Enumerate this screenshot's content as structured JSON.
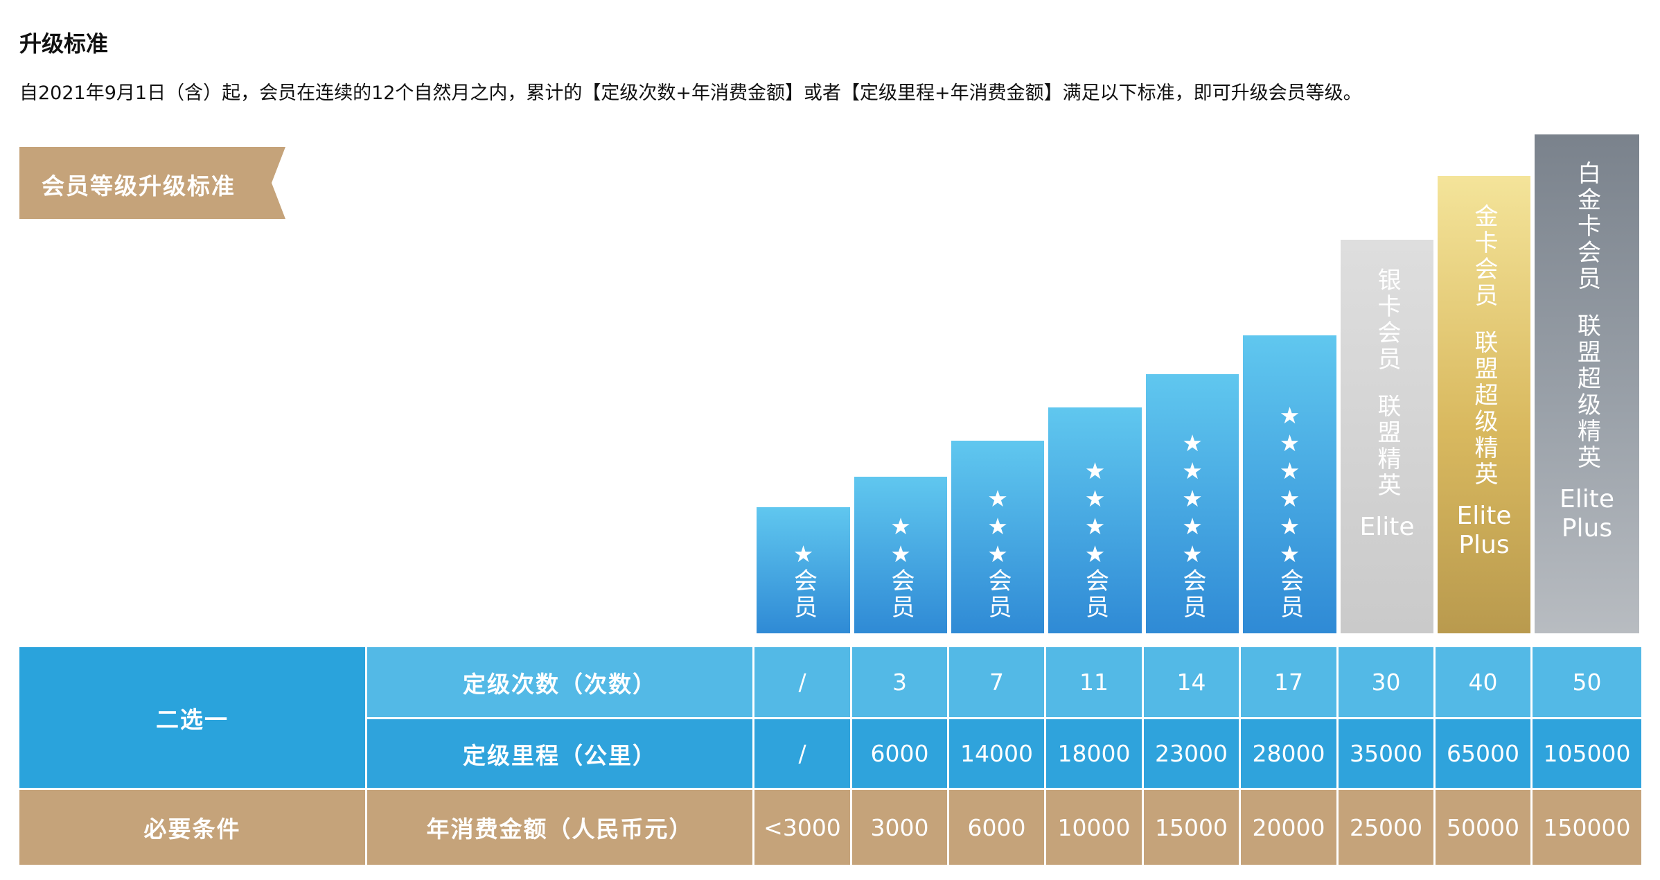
{
  "section_title": "升级标准",
  "description": "自2021年9月1日（含）起，会员在连续的12个自然月之内，累计的【定级次数+年消费金额】或者【定级里程+年消费金额】满足以下标准，即可升级会员等级。",
  "ribbon_label": "会员等级升级标准",
  "tiers": [
    {
      "stars": "★",
      "name": "会员"
    },
    {
      "stars": "★★",
      "name": "会员"
    },
    {
      "stars": "★★★",
      "name": "会员"
    },
    {
      "stars": "★★★★",
      "name": "会员"
    },
    {
      "stars": "★★★★★",
      "name": "会员"
    },
    {
      "stars": "★★★★★★",
      "name": "会员"
    },
    {
      "name": "银卡会员",
      "desc": "联盟精英",
      "eng": [
        "Elite"
      ]
    },
    {
      "name": "金卡会员",
      "desc": "联盟超级精英",
      "eng": [
        "Elite",
        "Plus"
      ]
    },
    {
      "name": "白金卡会员",
      "desc": "联盟超级精英",
      "eng": [
        "Elite",
        "Plus"
      ]
    }
  ],
  "table": {
    "group_choose": "二选一",
    "group_required": "必要条件",
    "row_trips": {
      "label": "定级次数（次数）",
      "values": [
        "/",
        "3",
        "7",
        "11",
        "14",
        "17",
        "30",
        "40",
        "50"
      ]
    },
    "row_miles": {
      "label": "定级里程（公里）",
      "values": [
        "/",
        "6000",
        "14000",
        "18000",
        "23000",
        "28000",
        "35000",
        "65000",
        "105000"
      ]
    },
    "row_spend": {
      "label": "年消费金额（人民币元）",
      "values": [
        "<3000",
        "3000",
        "6000",
        "10000",
        "15000",
        "20000",
        "25000",
        "50000",
        "150000"
      ]
    }
  },
  "colors": {
    "blue_dark": "#2aa3dc",
    "blue_light": "#53b9e6",
    "tan": "#c5a37a",
    "silver": "#cfcfcf",
    "gold": "#d9b95f",
    "platinum": "#8a9199"
  }
}
